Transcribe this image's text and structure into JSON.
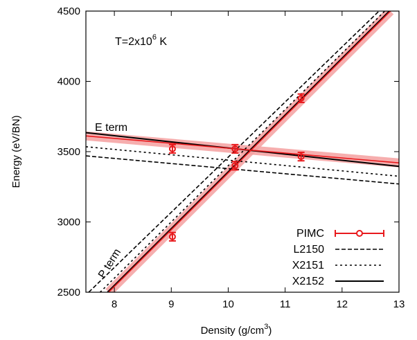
{
  "chart_data": {
    "type": "line",
    "xlabel": "Density (g/cm",
    "xlabel_sup": "3",
    "xlabel_suffix": ")",
    "ylabel": "Energy (eV/BN)",
    "xlim": [
      7.5,
      13
    ],
    "ylim": [
      2500,
      4500
    ],
    "xticks": [
      8,
      9,
      10,
      11,
      12,
      13
    ],
    "yticks": [
      2500,
      3000,
      3500,
      4000,
      4500
    ],
    "grid": false,
    "legend_position": "bottom-right",
    "temperature_label": {
      "base": "T=2x10",
      "sup": "6",
      "suffix": " K"
    },
    "annotations": {
      "e_term": "E term",
      "p_term": "P term"
    },
    "series": [
      {
        "name": "PIMC",
        "style": "points-errorbars",
        "color": "#e8191c",
        "band_color": "#f4a0a0",
        "points": [
          {
            "group": "E",
            "x": 9.02,
            "y": 3520,
            "err": 30
          },
          {
            "group": "E",
            "x": 10.12,
            "y": 3520,
            "err": 30
          },
          {
            "group": "E",
            "x": 11.28,
            "y": 3465,
            "err": 30
          },
          {
            "group": "P",
            "x": 9.02,
            "y": 2895,
            "err": 30
          },
          {
            "group": "P",
            "x": 10.12,
            "y": 3400,
            "err": 30
          },
          {
            "group": "P",
            "x": 11.28,
            "y": 3880,
            "err": 30
          }
        ],
        "fit_E": {
          "x": [
            7.5,
            13.0
          ],
          "y": [
            3612,
            3420
          ]
        },
        "fit_P": {
          "x": [
            7.9,
            12.85
          ],
          "y": [
            2500,
            4500
          ]
        }
      },
      {
        "name": "L2150",
        "style": "dashed",
        "color": "#000000",
        "E": {
          "x": [
            7.5,
            13.0
          ],
          "y": [
            3470,
            3270
          ]
        },
        "P": {
          "x": [
            7.55,
            12.65
          ],
          "y": [
            2500,
            4500
          ]
        }
      },
      {
        "name": "X2151",
        "style": "dotted",
        "color": "#000000",
        "E": {
          "x": [
            7.5,
            13.0
          ],
          "y": [
            3535,
            3325
          ]
        },
        "P": {
          "x": [
            7.75,
            12.75
          ],
          "y": [
            2500,
            4500
          ]
        }
      },
      {
        "name": "X2152",
        "style": "solid",
        "color": "#000000",
        "E": {
          "x": [
            7.5,
            13.0
          ],
          "y": [
            3635,
            3395
          ]
        },
        "P": {
          "x": [
            7.88,
            12.83
          ],
          "y": [
            2500,
            4500
          ]
        }
      }
    ]
  }
}
